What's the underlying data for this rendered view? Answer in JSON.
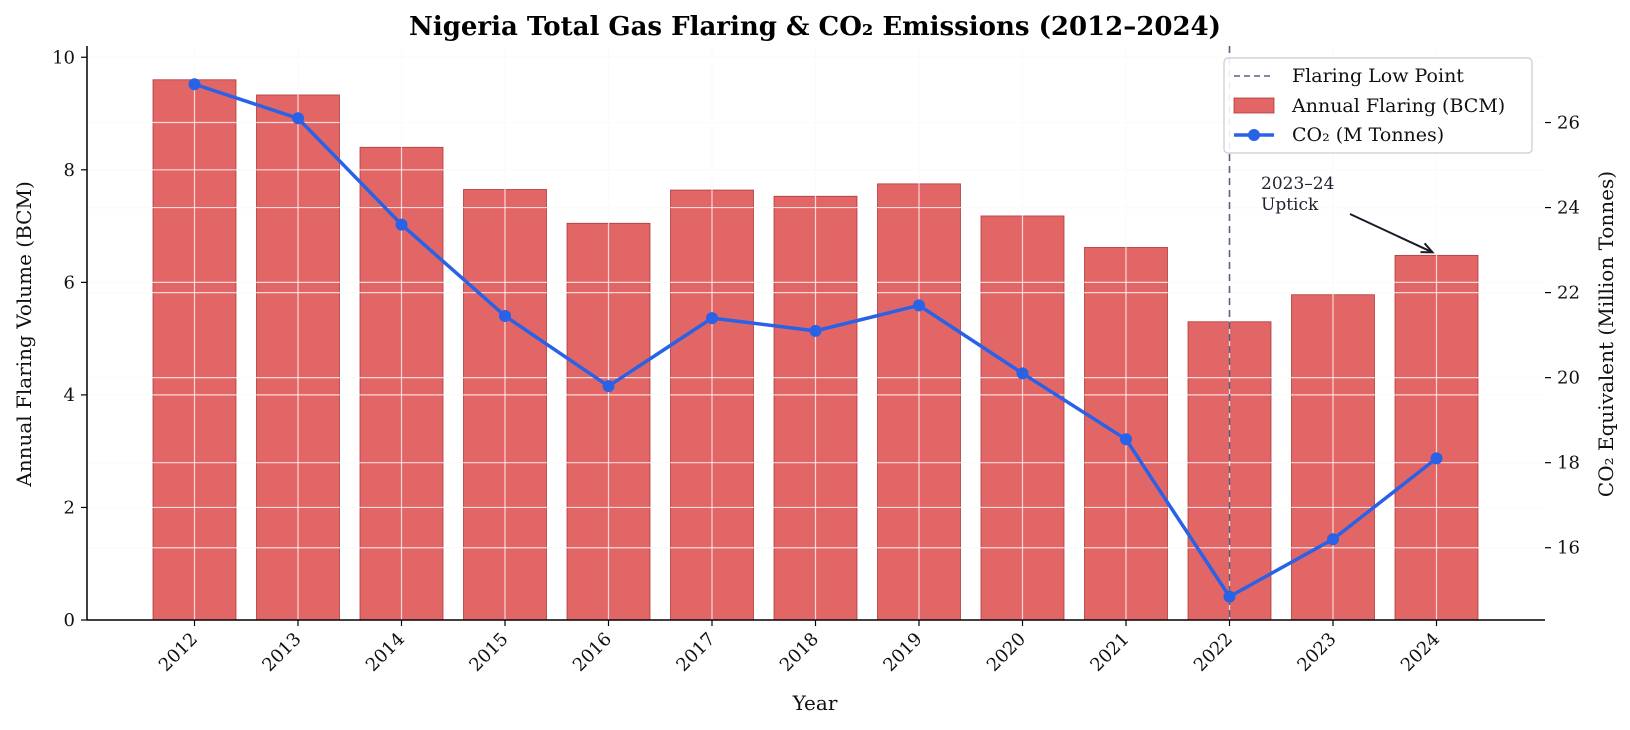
{
  "chart_data": {
    "type": "bar",
    "title": "Nigeria Total Gas Flaring & CO₂ Emissions (2012–2024)",
    "xlabel": "Year",
    "ylabel": "Annual Flaring Volume (BCM)",
    "ylabel_right": "CO₂ Equivalent (Million Tonnes)",
    "categories": [
      "2012",
      "2013",
      "2014",
      "2015",
      "2016",
      "2017",
      "2018",
      "2019",
      "2020",
      "2021",
      "2022",
      "2023",
      "2024"
    ],
    "ylim": [
      0,
      10.2
    ],
    "ylim_right": [
      14.3,
      27.8
    ],
    "yticks": [
      0,
      2,
      4,
      6,
      8,
      10
    ],
    "yticks_right": [
      16,
      18,
      20,
      22,
      24,
      26
    ],
    "grid": true,
    "legend_position": "top-right",
    "series": [
      {
        "name": "Annual Flaring (BCM)",
        "type": "bar",
        "axis": "left",
        "color": "#e36666",
        "values": [
          9.6,
          9.33,
          8.4,
          7.65,
          7.05,
          7.64,
          7.53,
          7.75,
          7.18,
          6.62,
          5.3,
          5.78,
          6.48
        ]
      },
      {
        "name": "CO₂ (M Tonnes)",
        "type": "line",
        "axis": "right",
        "color": "#2962e6",
        "values": [
          26.9,
          26.1,
          23.6,
          21.45,
          19.8,
          21.4,
          21.1,
          21.7,
          20.1,
          18.55,
          14.85,
          16.2,
          18.1
        ]
      }
    ],
    "reference_line": {
      "name": "Flaring Low Point",
      "x": "2022",
      "color": "#5a5f80"
    },
    "annotation": {
      "lines": [
        "2023–24",
        "Uptick"
      ],
      "target_x": "2024",
      "target_value": 6.48
    }
  }
}
